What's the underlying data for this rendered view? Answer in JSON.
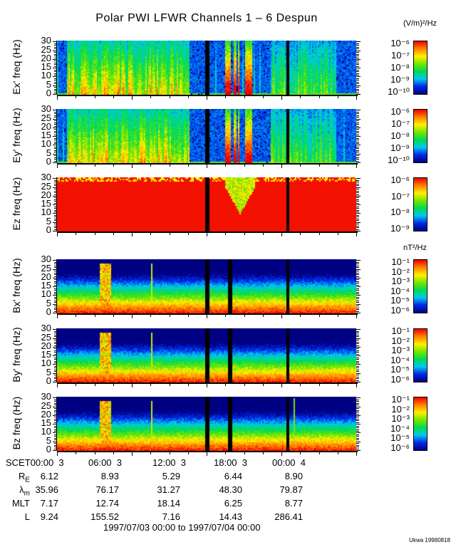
{
  "title": "Polar PWI LFWR Channels 1 – 6 Despun",
  "credit": "Ukwa 19980818",
  "chart_data": {
    "type": "heatmap",
    "panels": [
      {
        "ylabel": "Ex' freq (Hz)",
        "yticks": [
          "0",
          "5",
          "10",
          "15",
          "20",
          "25",
          "30"
        ],
        "ylim": [
          0,
          30
        ],
        "cbar_unit": "(V/m)²/Hz",
        "cbar_labels": [
          "10⁻⁶",
          "10⁻⁷",
          "10⁻⁸",
          "10⁻⁹",
          "10⁻¹⁰"
        ],
        "cbar_range": [
          -10,
          -6
        ],
        "kind": "e"
      },
      {
        "ylabel": "Ey' freq (Hz)",
        "yticks": [
          "0",
          "5",
          "10",
          "15",
          "20",
          "25",
          "30"
        ],
        "ylim": [
          0,
          30
        ],
        "cbar_unit": "",
        "cbar_labels": [
          "10⁻⁶",
          "10⁻⁷",
          "10⁻⁸",
          "10⁻⁹",
          "10⁻¹⁰"
        ],
        "cbar_range": [
          -10,
          -6
        ],
        "kind": "e"
      },
      {
        "ylabel": "Ez freq (Hz)",
        "yticks": [
          "0",
          "5",
          "10",
          "15",
          "20",
          "25",
          "30"
        ],
        "ylim": [
          0,
          30
        ],
        "cbar_unit": "",
        "cbar_labels": [
          "10⁻⁶",
          "10⁻⁷",
          "10⁻⁸",
          "10⁻⁹"
        ],
        "cbar_range": [
          -9,
          -6
        ],
        "kind": "ez"
      },
      {
        "ylabel": "Bx' freq (Hz)",
        "yticks": [
          "0",
          "5",
          "10",
          "15",
          "20",
          "25",
          "30"
        ],
        "ylim": [
          0,
          30
        ],
        "cbar_unit": "nT²/Hz",
        "cbar_labels": [
          "10⁻¹",
          "10⁻²",
          "10⁻³",
          "10⁻⁴",
          "10⁻⁵",
          "10⁻⁶"
        ],
        "cbar_range": [
          -6,
          -1
        ],
        "kind": "b"
      },
      {
        "ylabel": "By' freq (Hz)",
        "yticks": [
          "0",
          "5",
          "10",
          "15",
          "20",
          "25",
          "30"
        ],
        "ylim": [
          0,
          30
        ],
        "cbar_unit": "",
        "cbar_labels": [
          "10⁻¹",
          "10⁻²",
          "10⁻³",
          "10⁻⁴",
          "10⁻⁵",
          "10⁻⁶"
        ],
        "cbar_range": [
          -6,
          -1
        ],
        "kind": "b"
      },
      {
        "ylabel": "Bz freq (Hz)",
        "yticks": [
          "0",
          "5",
          "10",
          "15",
          "20",
          "25",
          "30"
        ],
        "ylim": [
          0,
          30
        ],
        "cbar_unit": "",
        "cbar_labels": [
          "10⁻¹",
          "10⁻²",
          "10⁻³",
          "10⁻⁴",
          "10⁻⁵",
          "10⁻⁶"
        ],
        "cbar_range": [
          -6,
          -1
        ],
        "kind": "b"
      }
    ],
    "x_ticks": [
      "SCET00:00  3",
      "06:00  3",
      "12:00  3",
      "18:00  3",
      "00:00  4"
    ],
    "ephemeris": [
      {
        "label": "R_E",
        "values": [
          "6.12",
          "8.93",
          "5.29",
          "6.44",
          "8.90"
        ]
      },
      {
        "label": "λ_m",
        "values": [
          "35.96",
          "76.17",
          "31.27",
          "48.30",
          "79.87"
        ]
      },
      {
        "label": "MLT",
        "values": [
          "7.17",
          "12.74",
          "18.14",
          "6.25",
          "8.77"
        ]
      },
      {
        "label": "L",
        "values": [
          "9.24",
          "155.52",
          "7.16",
          "14.43",
          "286.41"
        ]
      }
    ],
    "time_range": "1997/07/03 00:00 to 1997/07/04 00:00"
  }
}
